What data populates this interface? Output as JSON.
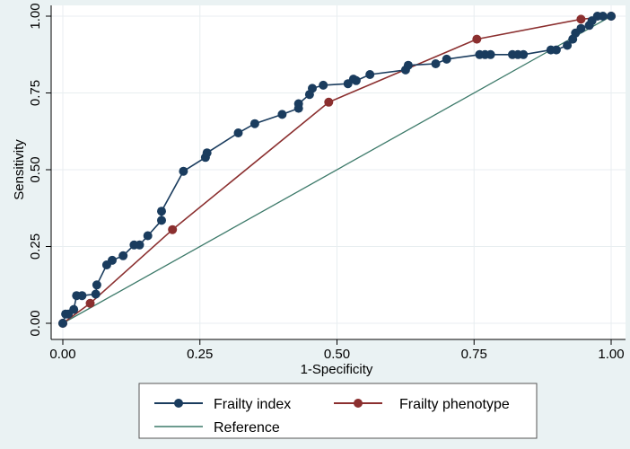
{
  "chart_data": {
    "type": "line",
    "title": "",
    "xlabel": "1-Specificity",
    "ylabel": "Sensitivity",
    "xlim": [
      0,
      1
    ],
    "ylim": [
      0,
      1
    ],
    "x_ticks": [
      "0.00",
      "0.25",
      "0.50",
      "0.75",
      "1.00"
    ],
    "y_ticks": [
      "0.00",
      "0.25",
      "0.50",
      "0.75",
      "1.00"
    ],
    "grid": true,
    "legend_position": "bottom",
    "colors": {
      "frailty_index": "#1a3c5e",
      "frailty_phenotype": "#8b2f2f",
      "reference": "#3d7a6a",
      "plot_background": "#ffffff",
      "outer_background": "#eaf2f3",
      "grid": "#e8eef0"
    },
    "series": [
      {
        "name": "Frailty index",
        "markers": true,
        "x": [
          0.0,
          0.005,
          0.01,
          0.02,
          0.025,
          0.035,
          0.06,
          0.062,
          0.08,
          0.09,
          0.11,
          0.13,
          0.14,
          0.155,
          0.18,
          0.18,
          0.22,
          0.26,
          0.263,
          0.32,
          0.35,
          0.4,
          0.43,
          0.43,
          0.45,
          0.455,
          0.475,
          0.52,
          0.53,
          0.535,
          0.56,
          0.625,
          0.63,
          0.68,
          0.7,
          0.76,
          0.77,
          0.78,
          0.82,
          0.83,
          0.84,
          0.89,
          0.9,
          0.92,
          0.93,
          0.935,
          0.945,
          0.96,
          0.965,
          0.975,
          0.985,
          1.0
        ],
        "y": [
          0.0,
          0.03,
          0.03,
          0.045,
          0.09,
          0.09,
          0.095,
          0.125,
          0.19,
          0.205,
          0.22,
          0.255,
          0.255,
          0.285,
          0.335,
          0.365,
          0.495,
          0.54,
          0.555,
          0.62,
          0.65,
          0.68,
          0.7,
          0.715,
          0.745,
          0.765,
          0.775,
          0.78,
          0.795,
          0.79,
          0.81,
          0.825,
          0.84,
          0.845,
          0.86,
          0.875,
          0.875,
          0.875,
          0.875,
          0.875,
          0.875,
          0.89,
          0.89,
          0.905,
          0.925,
          0.945,
          0.96,
          0.97,
          0.985,
          1.0,
          1.0,
          1.0
        ]
      },
      {
        "name": "Frailty phenotype",
        "markers": true,
        "x": [
          0.0,
          0.05,
          0.2,
          0.485,
          0.755,
          0.945,
          1.0
        ],
        "y": [
          0.0,
          0.065,
          0.305,
          0.72,
          0.925,
          0.99,
          1.0
        ]
      },
      {
        "name": "Reference",
        "markers": false,
        "x": [
          0.0,
          1.0
        ],
        "y": [
          0.0,
          1.0
        ]
      }
    ]
  }
}
